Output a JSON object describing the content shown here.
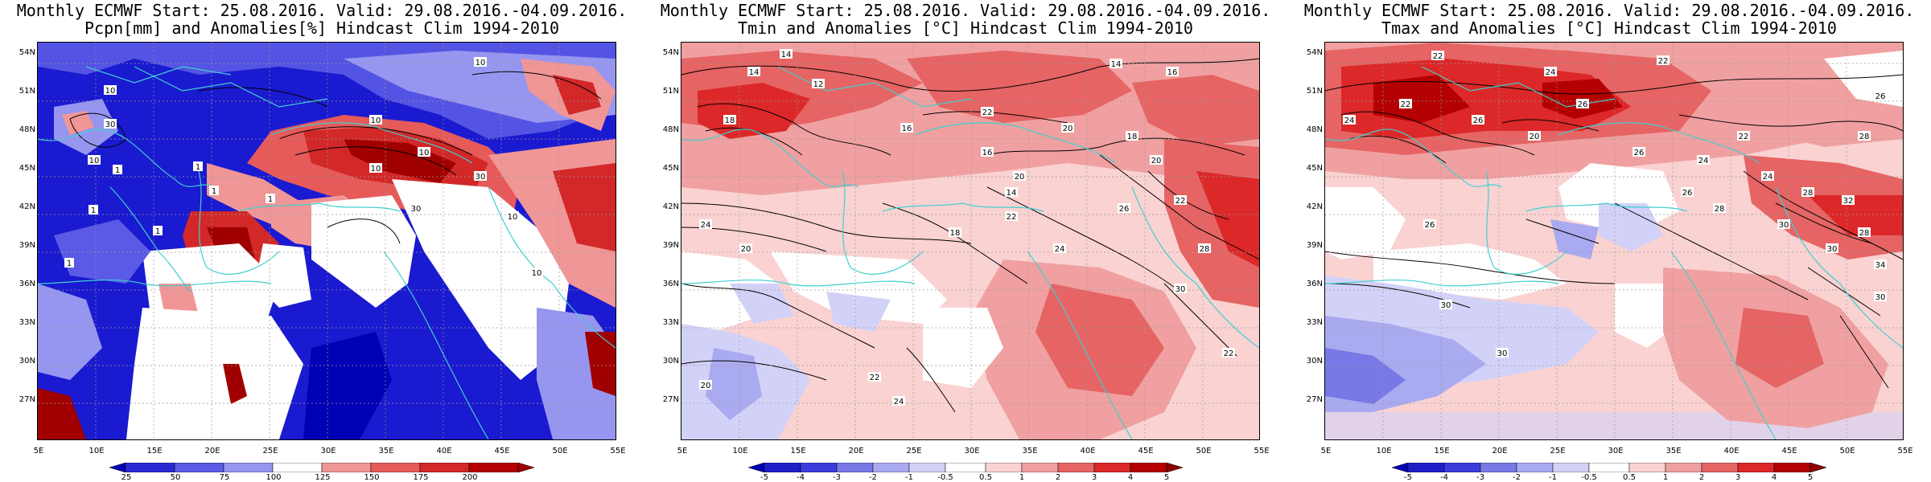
{
  "panels": [
    {
      "title1": "Monthly ECMWF Start: 25.08.2016. Valid: 29.08.2016.-04.09.2016.",
      "title2": "Pcpn[mm] and Anomalies[%] Hindcast Clim 1994-2010",
      "contours": [
        "10",
        "10",
        "30",
        "10",
        "10",
        "10",
        "1",
        "1",
        "1",
        "1",
        "1",
        "1",
        "1",
        "30",
        "30",
        "10",
        "10",
        "10"
      ],
      "colorbar": {
        "labels": [
          "25",
          "50",
          "75",
          "100",
          "125",
          "150",
          "175",
          "200"
        ],
        "colors": [
          "#0000b4",
          "#2828d2",
          "#5a5ae6",
          "#9696f0",
          "#ffffff",
          "#f09696",
          "#e65a5a",
          "#d22828",
          "#a00000"
        ]
      }
    },
    {
      "title1": "Monthly ECMWF Start: 25.08.2016. Valid: 29.08.2016.-04.09.2016.",
      "title2": "Tmin and Anomalies [°C] Hindcast Clim 1994-2010",
      "contours": [
        "14",
        "14",
        "14",
        "16",
        "12",
        "18",
        "16",
        "20",
        "22",
        "18",
        "24",
        "20",
        "22",
        "26",
        "22",
        "24",
        "28",
        "30",
        "20",
        "22",
        "24",
        "18",
        "20",
        "22",
        "20",
        "16",
        "14"
      ],
      "colorbar": {
        "labels": [
          "-5",
          "-4",
          "-3",
          "-2",
          "-1",
          "-0.5",
          "0.5",
          "1",
          "2",
          "3",
          "4",
          "5"
        ],
        "colors": [
          "#0000b4",
          "#1e1ec8",
          "#3c3cdc",
          "#7878e6",
          "#aaaaf0",
          "#d2d2f8",
          "#ffffff",
          "#fad2d2",
          "#f0a0a0",
          "#e66464",
          "#dc2828",
          "#b40000",
          "#8c0000"
        ]
      }
    },
    {
      "title1": "Monthly ECMWF Start: 25.08.2016. Valid: 29.08.2016.-04.09.2016.",
      "title2": "Tmax and Anomalies [°C] Hindcast Clim 1994-2010",
      "contours": [
        "22",
        "24",
        "22",
        "26",
        "24",
        "22",
        "26",
        "20",
        "28",
        "24",
        "26",
        "28",
        "30",
        "28",
        "26",
        "30",
        "32",
        "30",
        "28",
        "26",
        "24",
        "22",
        "26",
        "30",
        "34",
        "30"
      ],
      "colorbar": {
        "labels": [
          "-5",
          "-4",
          "-3",
          "-2",
          "-1",
          "-0.5",
          "0.5",
          "1",
          "2",
          "3",
          "4",
          "5"
        ],
        "colors": [
          "#0000b4",
          "#1e1ec8",
          "#3c3cdc",
          "#7878e6",
          "#aaaaf0",
          "#d2d2f8",
          "#ffffff",
          "#fad2d2",
          "#f0a0a0",
          "#e66464",
          "#dc2828",
          "#b40000",
          "#8c0000"
        ]
      }
    }
  ],
  "lat_labels": [
    "54N",
    "51N",
    "48N",
    "45N",
    "42N",
    "39N",
    "36N",
    "33N",
    "30N",
    "27N"
  ],
  "lon_labels": [
    "5E",
    "10E",
    "15E",
    "20E",
    "25E",
    "30E",
    "35E",
    "40E",
    "45E",
    "50E",
    "55E"
  ],
  "coast_color": "#40d0d0"
}
